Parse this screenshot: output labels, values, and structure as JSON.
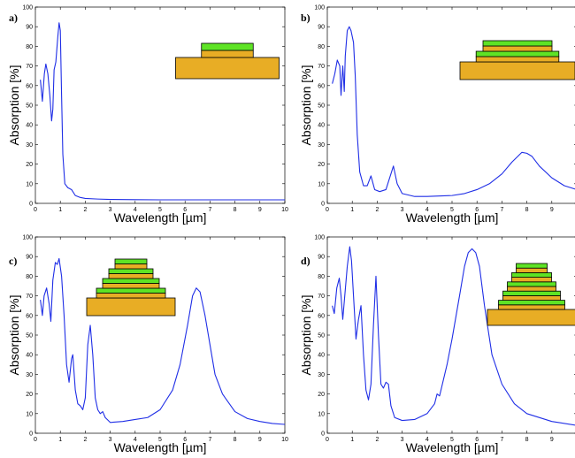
{
  "chart_data": [
    {
      "type": "line",
      "panel_label": "a)",
      "xlabel": "Wavelength [µm]",
      "ylabel": "Absorption [%]",
      "xlim": [
        0,
        10
      ],
      "ylim": [
        0,
        100
      ],
      "xticks": [
        "0",
        "1",
        "2",
        "3",
        "4",
        "5",
        "6",
        "7",
        "8",
        "9",
        "10"
      ],
      "yticks": [
        "0",
        "10",
        "20",
        "30",
        "40",
        "50",
        "60",
        "70",
        "80",
        "90",
        "100"
      ],
      "grid": false,
      "line_color": "#1f2ee6",
      "series": [
        {
          "x": [
            0.2,
            0.28,
            0.36,
            0.42,
            0.5,
            0.58,
            0.65,
            0.7,
            0.75,
            0.82,
            0.9,
            0.95,
            1.0,
            1.05,
            1.1,
            1.18,
            1.3,
            1.45,
            1.6,
            1.8,
            2.0,
            2.5,
            3.0,
            4.0,
            5.0,
            6.0,
            7.0,
            8.0,
            9.0,
            10.0
          ],
          "y": [
            63,
            52,
            66,
            71,
            66,
            55,
            42,
            48,
            68,
            72,
            85,
            92,
            88,
            55,
            25,
            10,
            8,
            7,
            4,
            3,
            2.5,
            2.2,
            2.0,
            1.9,
            1.8,
            1.8,
            1.8,
            1.8,
            1.8,
            1.8
          ]
        }
      ],
      "inset": {
        "layers": [
          {
            "material": "dielectric",
            "width": 0.45
          },
          {
            "material": "metal",
            "width": 0.45
          },
          {
            "material": "metal",
            "width": 0.9
          }
        ]
      }
    },
    {
      "type": "line",
      "panel_label": "b)",
      "xlabel": "Wavelength [µm]",
      "ylabel": "Absorption [%]",
      "xlim": [
        0,
        10
      ],
      "ylim": [
        0,
        100
      ],
      "xticks": [
        "0",
        "1",
        "2",
        "3",
        "4",
        "5",
        "6",
        "7",
        "8",
        "9"
      ],
      "yticks": [
        "0",
        "10",
        "20",
        "30",
        "40",
        "50",
        "60",
        "70",
        "80",
        "90",
        "100"
      ],
      "grid": false,
      "line_color": "#1f2ee6",
      "series": [
        {
          "x": [
            0.2,
            0.3,
            0.4,
            0.5,
            0.55,
            0.62,
            0.68,
            0.72,
            0.8,
            0.88,
            0.95,
            1.05,
            1.12,
            1.2,
            1.3,
            1.45,
            1.6,
            1.75,
            1.9,
            2.1,
            2.35,
            2.55,
            2.65,
            2.8,
            3.0,
            3.5,
            4.0,
            5.0,
            5.5,
            6.0,
            6.5,
            7.0,
            7.4,
            7.8,
            8.0,
            8.2,
            8.5,
            9.0,
            9.5,
            10.0
          ],
          "y": [
            61,
            66,
            73,
            70,
            55,
            70,
            57,
            75,
            88,
            90,
            88,
            82,
            65,
            35,
            16,
            9,
            9,
            14,
            7,
            6,
            7,
            15,
            19,
            10,
            5,
            3.5,
            3.5,
            4,
            5,
            7,
            10,
            15,
            21,
            26,
            25.5,
            24,
            19,
            13,
            9,
            7
          ]
        }
      ],
      "inset": {
        "layers": [
          {
            "material": "dielectric",
            "width": 0.6
          },
          {
            "material": "metal",
            "width": 0.6
          },
          {
            "material": "dielectric",
            "width": 0.72
          },
          {
            "material": "metal",
            "width": 0.72
          },
          {
            "material": "metal",
            "width": 1.0
          }
        ]
      }
    },
    {
      "type": "line",
      "panel_label": "c)",
      "xlabel": "Wavelength [µm]",
      "ylabel": "Absorption [%]",
      "xlim": [
        0,
        10
      ],
      "ylim": [
        0,
        100
      ],
      "xticks": [
        "0",
        "1",
        "2",
        "3",
        "4",
        "5",
        "6",
        "7",
        "8",
        "9",
        "10"
      ],
      "yticks": [
        "0",
        "10",
        "20",
        "30",
        "40",
        "50",
        "60",
        "70",
        "80",
        "90",
        "100"
      ],
      "grid": false,
      "line_color": "#1f2ee6",
      "series": [
        {
          "x": [
            0.2,
            0.28,
            0.35,
            0.45,
            0.55,
            0.62,
            0.7,
            0.8,
            0.88,
            0.95,
            1.05,
            1.15,
            1.25,
            1.35,
            1.45,
            1.5,
            1.6,
            1.7,
            1.8,
            1.9,
            2.0,
            2.1,
            2.2,
            2.3,
            2.4,
            2.5,
            2.6,
            2.7,
            2.8,
            3.0,
            3.5,
            4.0,
            4.5,
            5.0,
            5.5,
            5.8,
            6.1,
            6.3,
            6.45,
            6.6,
            6.8,
            7.0,
            7.2,
            7.5,
            8.0,
            8.5,
            9.0,
            9.5,
            10.0
          ],
          "y": [
            68,
            60,
            70,
            74,
            66,
            57,
            78,
            87,
            86,
            89,
            80,
            60,
            35,
            26,
            38,
            40,
            22,
            15,
            14,
            12,
            18,
            45,
            55,
            40,
            18,
            12,
            10,
            11,
            8,
            5.5,
            6,
            7,
            8,
            12,
            22,
            35,
            55,
            70,
            74,
            72,
            60,
            45,
            30,
            20,
            11,
            7.5,
            6,
            5,
            4.5
          ]
        }
      ],
      "inset": {
        "layers": [
          {
            "material": "dielectric",
            "width": 0.36
          },
          {
            "material": "metal",
            "width": 0.36
          },
          {
            "material": "dielectric",
            "width": 0.5
          },
          {
            "material": "metal",
            "width": 0.5
          },
          {
            "material": "dielectric",
            "width": 0.64
          },
          {
            "material": "metal",
            "width": 0.64
          },
          {
            "material": "dielectric",
            "width": 0.78
          },
          {
            "material": "metal",
            "width": 0.78
          },
          {
            "material": "metal",
            "width": 1.0
          }
        ]
      }
    },
    {
      "type": "line",
      "panel_label": "d)",
      "xlabel": "Wavelength [µm]",
      "ylabel": "Absorption [%]",
      "xlim": [
        0,
        10
      ],
      "ylim": [
        0,
        100
      ],
      "xticks": [
        "0",
        "1",
        "2",
        "3",
        "4",
        "5",
        "6",
        "7",
        "8",
        "9"
      ],
      "yticks": [
        "0",
        "10",
        "20",
        "30",
        "40",
        "50",
        "60",
        "70",
        "80",
        "90",
        "100"
      ],
      "grid": false,
      "line_color": "#1f2ee6",
      "series": [
        {
          "x": [
            0.2,
            0.28,
            0.38,
            0.48,
            0.55,
            0.62,
            0.7,
            0.8,
            0.9,
            0.97,
            1.05,
            1.15,
            1.25,
            1.35,
            1.45,
            1.55,
            1.65,
            1.75,
            1.85,
            1.95,
            2.05,
            2.15,
            2.25,
            2.35,
            2.45,
            2.55,
            2.7,
            3.0,
            3.5,
            4.0,
            4.3,
            4.4,
            4.5,
            4.8,
            5.0,
            5.3,
            5.5,
            5.65,
            5.8,
            5.95,
            6.1,
            6.3,
            6.6,
            7.0,
            7.5,
            8.0,
            9.0,
            10.0
          ],
          "y": [
            65,
            61,
            74,
            79,
            70,
            58,
            70,
            85,
            95,
            88,
            70,
            48,
            58,
            65,
            40,
            22,
            17,
            25,
            55,
            80,
            50,
            25,
            23,
            26,
            25,
            14,
            8,
            6.5,
            7,
            10,
            15,
            20,
            19,
            35,
            48,
            70,
            85,
            92,
            94,
            92,
            85,
            65,
            40,
            25,
            15,
            10,
            6,
            4
          ]
        }
      ],
      "inset": {
        "layers": [
          {
            "material": "dielectric",
            "width": 0.35
          },
          {
            "material": "metal",
            "width": 0.35
          },
          {
            "material": "dielectric",
            "width": 0.45
          },
          {
            "material": "metal",
            "width": 0.45
          },
          {
            "material": "dielectric",
            "width": 0.55
          },
          {
            "material": "metal",
            "width": 0.55
          },
          {
            "material": "dielectric",
            "width": 0.65
          },
          {
            "material": "metal",
            "width": 0.65
          },
          {
            "material": "dielectric",
            "width": 0.75
          },
          {
            "material": "metal",
            "width": 0.75
          },
          {
            "material": "metal",
            "width": 1.0
          }
        ]
      }
    }
  ],
  "colors": {
    "line": "#1f2ee6",
    "metal": "#e8ad25",
    "dielectric": "#5ee325",
    "outline": "#000000"
  }
}
